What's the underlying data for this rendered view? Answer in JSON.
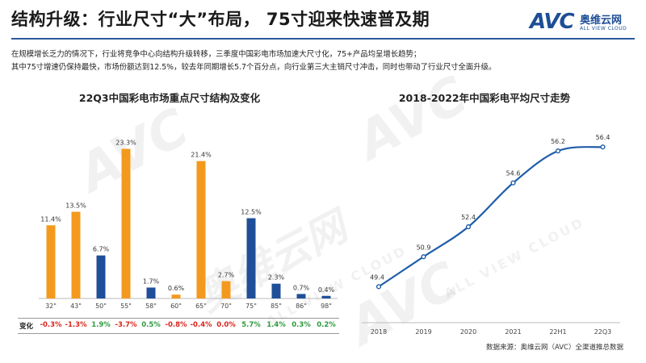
{
  "header": {
    "title": "结构升级：行业尺寸“大”布局，  75寸迎来快速普及期",
    "logo_mark": "AVC",
    "logo_cn": "奥维云网",
    "logo_en": "ALL VIEW CLOUD"
  },
  "intro": {
    "line1": "在规模增长乏力的情况下，行业将竞争中心向结构升级转移，三季度中国彩电市场加速大尺寸化，75+产品均呈增长趋势；",
    "line2": "其中75寸增速仍保持最快，市场份额达到12.5%，较去年同期增长5.7个百分点，向行业第三大主销尺寸冲击，同时也带动了行业尺寸全面升级。"
  },
  "colors": {
    "orange": "#f39a1e",
    "blue": "#1f4f99",
    "line": "#1f5da8",
    "negative": "#d9261c",
    "positive": "#2e9b3e"
  },
  "chart_data": [
    {
      "type": "bar",
      "title": "22Q3中国彩电市场重点尺寸结构及变化",
      "categories": [
        "32\"",
        "43\"",
        "50\"",
        "55\"",
        "58\"",
        "60\"",
        "65\"",
        "70\"",
        "75\"",
        "85\"",
        "86\"",
        "98\""
      ],
      "values": [
        11.4,
        13.5,
        6.7,
        23.3,
        1.7,
        0.6,
        21.4,
        2.7,
        12.5,
        2.3,
        0.7,
        0.4
      ],
      "value_labels": [
        "11.4%",
        "13.5%",
        "6.7%",
        "23.3%",
        "1.7%",
        "0.6%",
        "21.4%",
        "2.7%",
        "12.5%",
        "2.3%",
        "0.7%",
        "0.4%"
      ],
      "bar_colors": [
        "orange",
        "orange",
        "blue",
        "orange",
        "blue",
        "orange",
        "orange",
        "orange",
        "blue",
        "blue",
        "blue",
        "blue"
      ],
      "ylim": [
        0,
        25
      ],
      "change_label": "变化",
      "changes": [
        "-0.3%",
        "-1.3%",
        "1.9%",
        "-3.7%",
        "0.5%",
        "-0.8%",
        "-0.4%",
        "0.0%",
        "5.7%",
        "1.4%",
        "0.3%",
        "0.2%"
      ],
      "change_signs": [
        "neg",
        "neg",
        "pos",
        "neg",
        "pos",
        "neg",
        "neg",
        "neg",
        "pos",
        "pos",
        "pos",
        "pos"
      ]
    },
    {
      "type": "line",
      "title": "2018-2022年中国彩电平均尺寸走势",
      "x": [
        "2018",
        "2019",
        "2020",
        "2021",
        "22H1",
        "22Q3"
      ],
      "values": [
        49.4,
        50.9,
        52.4,
        54.6,
        56.2,
        56.4
      ],
      "value_labels": [
        "49.4",
        "50.9",
        "52.4",
        "54.6",
        "56.2",
        "56.4"
      ],
      "ylim": [
        48,
        57.5
      ]
    }
  ],
  "source": "数据来源：奥维云网（AVC）全渠道推总数据",
  "watermark": {
    "mark": "AVC",
    "cn": "奥维云网",
    "en": "ALL VIEW CLOUD"
  }
}
